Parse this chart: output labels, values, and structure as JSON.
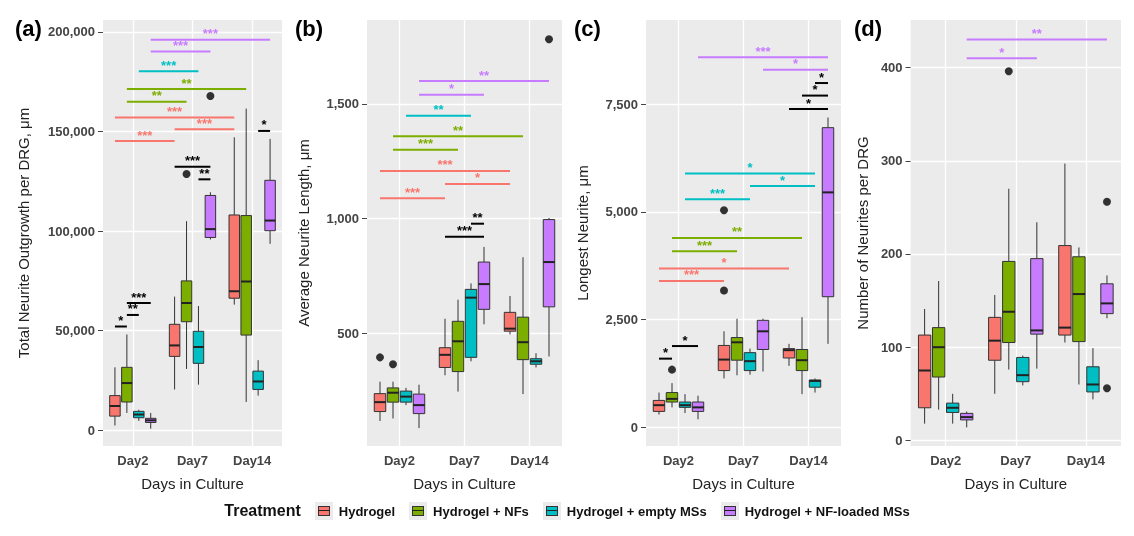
{
  "chart_data": [
    {
      "type": "box",
      "title": "(a)",
      "xlabel": "Days in Culture",
      "ylabel": "Total Neurite Outgrowth per DRG, μm",
      "categories": [
        "Day2",
        "Day7",
        "Day14"
      ],
      "ylim": [
        -7900,
        206000
      ],
      "yticks": [
        {
          "value": 0,
          "label": "0"
        },
        {
          "value": 50000,
          "label": "50,000"
        },
        {
          "value": 100000,
          "label": "100,000"
        },
        {
          "value": 150000,
          "label": "150,000"
        },
        {
          "value": 200000,
          "label": "200,000"
        }
      ],
      "grid": true,
      "legend": "bottom",
      "legend_title": "Treatment",
      "series": [
        {
          "name": "Hydrogel",
          "color": "#f8766d",
          "boxes": [
            {
              "low": 2400,
              "q1": 7100,
              "median": 12200,
              "q3": 17400,
              "high": 31600
            },
            {
              "low": 20500,
              "q1": 37100,
              "median": 42600,
              "q3": 53200,
              "high": 67100
            },
            {
              "low": 63100,
              "q1": 66300,
              "median": 69800,
              "q3": 108100,
              "high": 147100
            }
          ]
        },
        {
          "name": "Hydrogel + NFs",
          "color": "#7cae00",
          "boxes": [
            {
              "low": 8700,
              "q1": 14200,
              "median": 23700,
              "q3": 31600,
              "high": 48100
            },
            {
              "low": 30800,
              "q1": 54500,
              "median": 63900,
              "q3": 75000,
              "high": 105000,
              "outliers": [
                128700
              ]
            },
            {
              "low": 14200,
              "q1": 47800,
              "median": 74700,
              "q3": 107800,
              "high": 161500
            }
          ]
        },
        {
          "name": "Hydrogel + empty MSs",
          "color": "#00bfc4",
          "boxes": [
            {
              "low": 4700,
              "q1": 6300,
              "median": 7900,
              "q3": 9500,
              "high": 10300
            },
            {
              "low": 22900,
              "q1": 33600,
              "median": 41800,
              "q3": 49700,
              "high": 62400
            },
            {
              "low": 17400,
              "q1": 20500,
              "median": 24500,
              "q3": 29700,
              "high": 35200
            }
          ]
        },
        {
          "name": "Hydrogel + NF-loaded MSs",
          "color": "#c77cff",
          "boxes": [
            {
              "low": 800,
              "q1": 3900,
              "median": 5000,
              "q3": 6000,
              "high": 8700
            },
            {
              "low": 95800,
              "q1": 96800,
              "median": 101000,
              "q3": 117900,
              "high": 119500,
              "outliers": [
                167800
              ]
            },
            {
              "low": 93600,
              "q1": 100200,
              "median": 105300,
              "q3": 125500,
              "high": 146300
            }
          ]
        }
      ],
      "annotations": [
        "***",
        "***",
        "***",
        "**",
        "**",
        "***",
        "***",
        "***",
        "***",
        "**",
        "*",
        "***",
        "**",
        "*"
      ]
    },
    {
      "type": "box",
      "title": "(b)",
      "xlabel": "Days in Culture",
      "ylabel": "Average Neurite Length, μm",
      "categories": [
        "Day2",
        "Day7",
        "Day14"
      ],
      "ylim": [
        10,
        1865
      ],
      "yticks": [
        {
          "value": 500,
          "label": "500"
        },
        {
          "value": 1000,
          "label": "1,000"
        },
        {
          "value": 1500,
          "label": "1,500"
        }
      ],
      "grid": true,
      "series": [
        {
          "color": "#f8766d",
          "boxes": [
            {
              "low": 119,
              "q1": 160,
              "median": 201,
              "q3": 238,
              "high": 290,
              "outliers": [
                396
              ]
            },
            {
              "low": 318,
              "q1": 352,
              "median": 407,
              "q3": 438,
              "high": 564
            },
            {
              "low": 496,
              "q1": 510,
              "median": 521,
              "q3": 592,
              "high": 663
            }
          ]
        },
        {
          "color": "#7cae00",
          "boxes": [
            {
              "low": 130,
              "q1": 201,
              "median": 242,
              "q3": 263,
              "high": 290,
              "outliers": [
                366
              ]
            },
            {
              "low": 247,
              "q1": 334,
              "median": 466,
              "q3": 553,
              "high": 647
            },
            {
              "low": 236,
              "q1": 386,
              "median": 462,
              "q3": 571,
              "high": 832
            }
          ]
        },
        {
          "color": "#00bfc4",
          "boxes": [
            {
              "low": 188,
              "q1": 201,
              "median": 225,
              "q3": 249,
              "high": 263
            },
            {
              "low": 379,
              "q1": 396,
              "median": 656,
              "q3": 692,
              "high": 718
            },
            {
              "low": 352,
              "q1": 366,
              "median": 379,
              "q3": 390,
              "high": 414
            }
          ]
        },
        {
          "color": "#c77cff",
          "boxes": [
            {
              "low": 88,
              "q1": 151,
              "median": 188,
              "q3": 236,
              "high": 277
            },
            {
              "low": 540,
              "q1": 605,
              "median": 715,
              "q3": 811,
              "high": 877
            },
            {
              "low": 400,
              "q1": 616,
              "median": 811,
              "q3": 996,
              "high": 1003,
              "outliers": [
                1781
              ]
            }
          ]
        }
      ],
      "annotations": [
        "**",
        "*",
        "**",
        "**",
        "***",
        "***",
        "*",
        "***",
        "**",
        "***"
      ]
    },
    {
      "type": "box",
      "title": "(c)",
      "xlabel": "Days in Culture",
      "ylabel": "Longest Neurite, μm",
      "categories": [
        "Day2",
        "Day7",
        "Day14"
      ],
      "ylim": [
        -430,
        9450
      ],
      "yticks": [
        {
          "value": 0,
          "label": "0"
        },
        {
          "value": 2500,
          "label": "2,500"
        },
        {
          "value": 5000,
          "label": "5,000"
        },
        {
          "value": 7500,
          "label": "7,500"
        }
      ],
      "grid": true,
      "series": [
        {
          "color": "#f8766d",
          "boxes": [
            {
              "low": 299,
              "q1": 372,
              "median": 517,
              "q3": 627,
              "high": 809
            },
            {
              "low": 1137,
              "q1": 1319,
              "median": 1574,
              "q3": 1902,
              "high": 2230,
              "outliers": [
                3178,
                5036
              ]
            },
            {
              "low": 1429,
              "q1": 1611,
              "median": 1793,
              "q3": 1829,
              "high": 1939
            }
          ]
        },
        {
          "color": "#7cae00",
          "boxes": [
            {
              "low": 466,
              "q1": 590,
              "median": 663,
              "q3": 809,
              "high": 1028,
              "outliers": [
                1341
              ]
            },
            {
              "low": 1210,
              "q1": 1560,
              "median": 1975,
              "q3": 2085,
              "high": 2522
            },
            {
              "low": 773,
              "q1": 1319,
              "median": 1560,
              "q3": 1808,
              "high": 2558
            }
          ]
        },
        {
          "color": "#00bfc4",
          "boxes": [
            {
              "low": 335,
              "q1": 466,
              "median": 517,
              "q3": 590,
              "high": 773
            },
            {
              "low": 1225,
              "q1": 1319,
              "median": 1538,
              "q3": 1735,
              "high": 1829
            },
            {
              "low": 809,
              "q1": 933,
              "median": 1079,
              "q3": 1101,
              "high": 1137
            }
          ]
        },
        {
          "color": "#c77cff",
          "boxes": [
            {
              "low": 190,
              "q1": 372,
              "median": 466,
              "q3": 590,
              "high": 736
            },
            {
              "low": 1297,
              "q1": 1808,
              "median": 2230,
              "q3": 2485,
              "high": 2522
            },
            {
              "low": 1939,
              "q1": 3032,
              "median": 5452,
              "q3": 6953,
              "high": 7187
            }
          ]
        }
      ],
      "annotations": [
        "***",
        "*",
        "*",
        "*",
        "*",
        "*",
        "*",
        "***",
        "**",
        "***",
        "*",
        "***",
        "*",
        "*"
      ]
    },
    {
      "type": "box",
      "title": "(d)",
      "xlabel": "Days in Culture",
      "ylabel": "Number of Neurites per DRG",
      "categories": [
        "Day2",
        "Day7",
        "Day14"
      ],
      "ylim": [
        -6,
        451
      ],
      "yticks": [
        0,
        100,
        200,
        300,
        400
      ],
      "grid": true,
      "series": [
        {
          "color": "#f8766d",
          "boxes": [
            {
              "low": 18,
              "q1": 35,
              "median": 75,
              "q3": 113,
              "high": 141
            },
            {
              "low": 50,
              "q1": 86,
              "median": 107,
              "q3": 132,
              "high": 156
            },
            {
              "low": 105,
              "q1": 113,
              "median": 121,
              "q3": 209,
              "high": 297
            }
          ]
        },
        {
          "color": "#7cae00",
          "boxes": [
            {
              "low": 33,
              "q1": 68,
              "median": 100,
              "q3": 121,
              "high": 171
            },
            {
              "low": 76,
              "q1": 105,
              "median": 138,
              "q3": 192,
              "high": 270,
              "outliers": [
                396
              ]
            },
            {
              "low": 60,
              "q1": 106,
              "median": 157,
              "q3": 197,
              "high": 207
            }
          ]
        },
        {
          "color": "#00bfc4",
          "boxes": [
            {
              "low": 18,
              "q1": 30,
              "median": 35,
              "q3": 40,
              "high": 50
            },
            {
              "low": 59,
              "q1": 63,
              "median": 70,
              "q3": 89,
              "high": 91
            },
            {
              "low": 44,
              "q1": 52,
              "median": 60,
              "q3": 79,
              "high": 99
            }
          ]
        },
        {
          "color": "#c77cff",
          "boxes": [
            {
              "low": 14,
              "q1": 22,
              "median": 25,
              "q3": 29,
              "high": 31
            },
            {
              "low": 77,
              "q1": 114,
              "median": 118,
              "q3": 195,
              "high": 234
            },
            {
              "low": 131,
              "q1": 136,
              "median": 147,
              "q3": 168,
              "high": 177,
              "outliers": [
                256,
                56
              ]
            }
          ]
        }
      ],
      "annotations": [
        "**",
        "*"
      ]
    }
  ]
}
